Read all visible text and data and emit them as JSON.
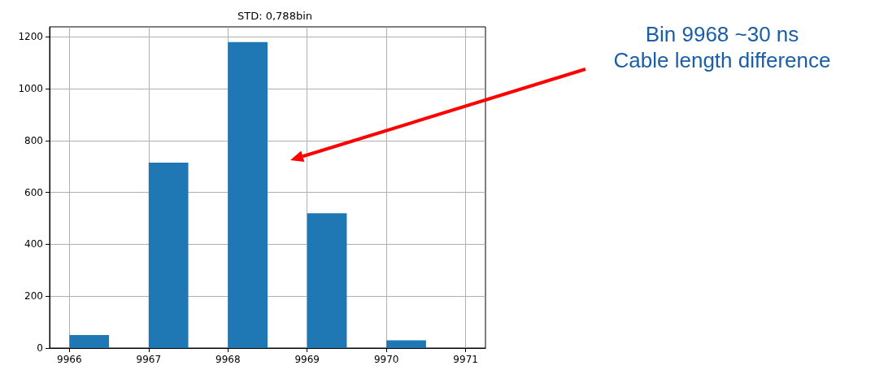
{
  "chart_data": {
    "type": "histogram",
    "title": "STD: 0,788bin",
    "bins": [
      9966,
      9966.5,
      9967,
      9967.5,
      9968,
      9968.5,
      9969,
      9969.5,
      9970,
      9970.5,
      9971
    ],
    "values": [
      50,
      0,
      715,
      0,
      1180,
      0,
      520,
      0,
      30,
      0
    ],
    "color": "#1f77b4",
    "xlim": [
      9965.75,
      9971.25
    ],
    "xticks": [
      9966,
      9967,
      9968,
      9969,
      9970,
      9971
    ],
    "ylim": [
      0,
      1239
    ],
    "yticks": [
      0,
      200,
      400,
      600,
      800,
      1000,
      1200
    ],
    "grid": true,
    "annotations": [
      "Bin 9968  ~30 ns\nCable length difference"
    ]
  }
}
